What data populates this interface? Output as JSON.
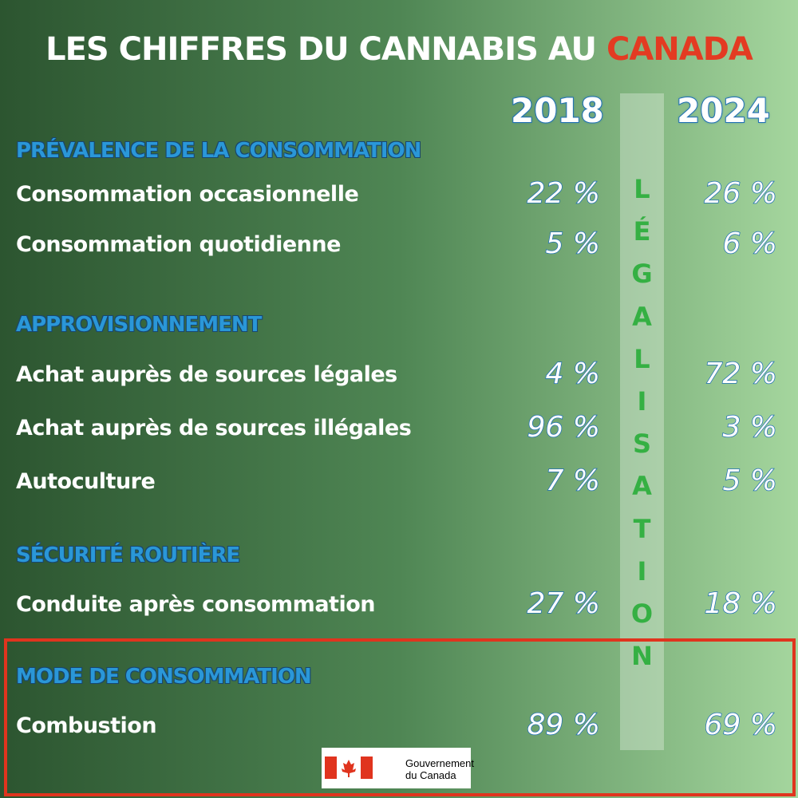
{
  "header": {
    "title": "LES CHIFFRES DU CANNABIS AU",
    "title_highlight": "CANADA"
  },
  "years": [
    "2018",
    "2024"
  ],
  "band": {
    "letters": [
      "L",
      "É",
      "G",
      "A",
      "L",
      "I",
      "S",
      "A",
      "T",
      "I",
      "O",
      "N"
    ]
  },
  "sections": [
    {
      "title": "PRÉVALENCE DE LA CONSOMMATION",
      "rows": [
        [
          "Consommation occasionnelle",
          "22 %",
          "26 %"
        ],
        [
          "Consommation quotidienne",
          "5 %",
          "6 %"
        ]
      ]
    },
    {
      "title": "APPROVISIONNEMENT",
      "rows": [
        [
          "Achat auprès de sources légales",
          "4 %",
          "72 %"
        ],
        [
          "Achat auprès de sources illégales",
          "96 %",
          "3 %"
        ],
        [
          "Autoculture",
          "7 %",
          "5 %"
        ]
      ]
    },
    {
      "title": "SÉCURITÉ ROUTIÈRE",
      "rows": [
        [
          "Conduite après consommation",
          "27 %",
          "18 %"
        ]
      ]
    },
    {
      "title": "MODE DE CONSOMMATION",
      "rows": [
        [
          "Combustion",
          "89 %",
          "69 %"
        ]
      ]
    }
  ],
  "logo": {
    "line1": "Gouvernement",
    "line2": "du Canada"
  }
}
